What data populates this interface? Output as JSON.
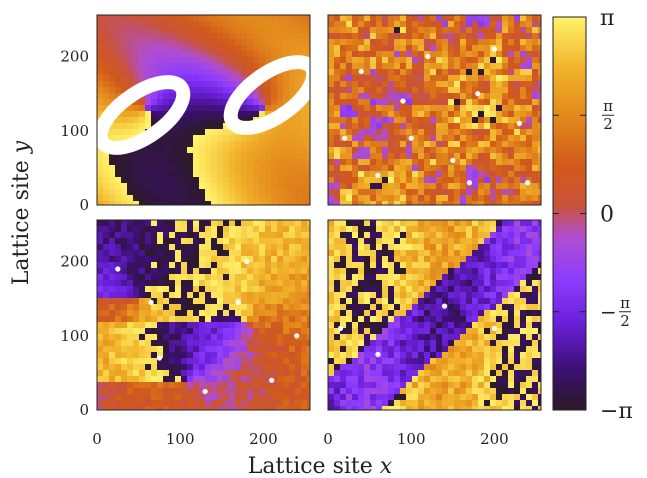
{
  "chart_data": {
    "type": "heatmap",
    "description_free": true,
    "xlabel_text": "Lattice site ",
    "xlabel_var": "x",
    "ylabel_text": "Lattice site ",
    "ylabel_var": "y",
    "xlim": [
      0,
      256
    ],
    "ylim": [
      0,
      256
    ],
    "x_ticks": [
      "0",
      "100",
      "200"
    ],
    "y_ticks": [
      "0",
      "100",
      "200"
    ],
    "x_tick_values": [
      0,
      100,
      200
    ],
    "y_tick_values": [
      0,
      100,
      200
    ],
    "colorbar": {
      "min": -3.14159,
      "max": 3.14159,
      "ticks": [
        {
          "value": 3.14159,
          "label_main": "π",
          "label_num": "",
          "label_den": "",
          "label_sign": ""
        },
        {
          "value": 1.5708,
          "label_main": "",
          "label_num": "π",
          "label_den": "2",
          "label_sign": ""
        },
        {
          "value": 0,
          "label_main": "0",
          "label_num": "",
          "label_den": "",
          "label_sign": ""
        },
        {
          "value": -1.5708,
          "label_main": "",
          "label_num": "π",
          "label_den": "2",
          "label_sign": "−"
        },
        {
          "value": -3.14159,
          "label_main": "−π",
          "label_num": "",
          "label_den": "",
          "label_sign": ""
        }
      ],
      "colors": [
        "#2b1b26",
        "#3b0f70",
        "#6a1fd8",
        "#8c3cff",
        "#b04ed0",
        "#c9533a",
        "#d15a1a",
        "#e2861c",
        "#f1b32a",
        "#fff36b"
      ]
    },
    "panels": [
      {
        "id": "top-left",
        "pattern": "smooth-vortex-pair",
        "defect_color": "#ffffff"
      },
      {
        "id": "top-right",
        "pattern": "noisy-ordered",
        "defect_color": "#ffffff"
      },
      {
        "id": "bottom-left",
        "pattern": "domains-quadrants",
        "defect_color": "#ffffff"
      },
      {
        "id": "bottom-right",
        "pattern": "diagonal-domain",
        "defect_color": "#ffffff"
      }
    ]
  }
}
